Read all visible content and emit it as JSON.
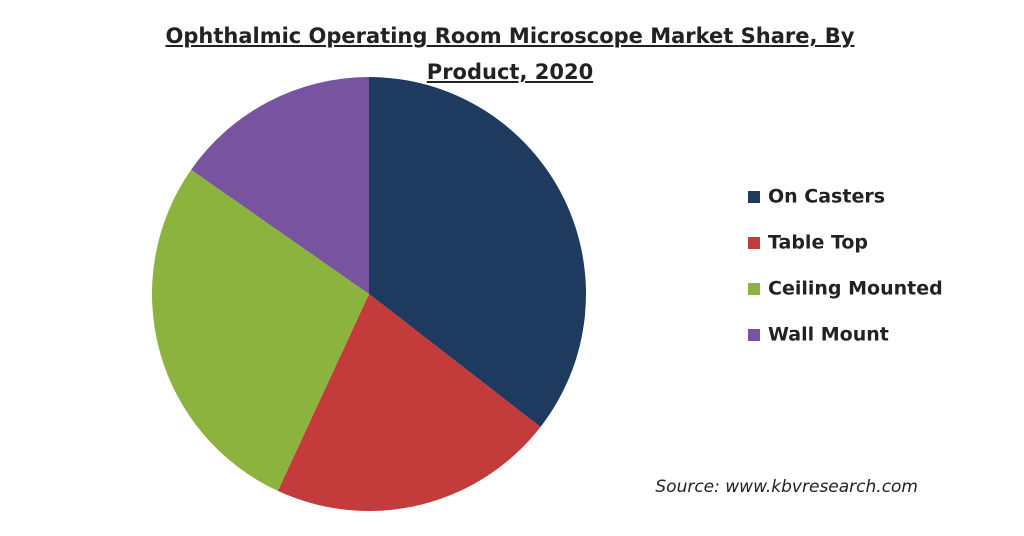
{
  "chart_data": {
    "type": "pie",
    "title": "Ophthalmic Operating Room Microscope Market Share, By Product, 2020",
    "categories": [
      "On Casters",
      "Table Top",
      "Ceiling Mounted",
      "Wall Mount"
    ],
    "values": [
      35.5,
      21.4,
      27.8,
      15.3
    ],
    "colors": [
      "#1e3a5f",
      "#c33b3a",
      "#8cb33d",
      "#7853a0"
    ],
    "source": "Source: www.kbvresearch.com"
  }
}
